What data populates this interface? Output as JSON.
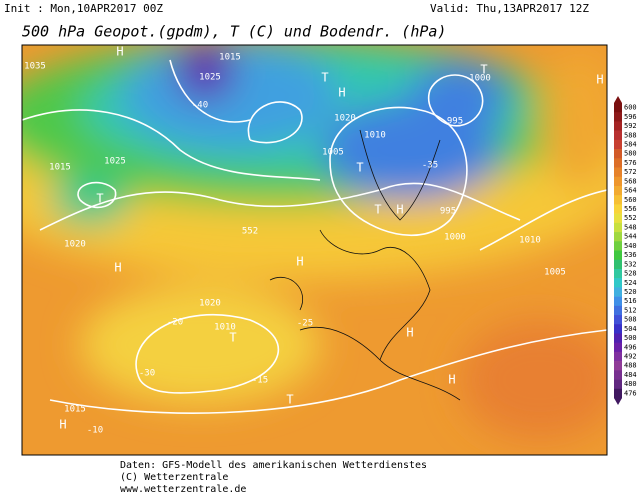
{
  "header": {
    "init": "Init : Mon,10APR2017 00Z",
    "valid": "Valid: Thu,13APR2017 12Z",
    "title": "500 hPa Geopot.(gpdm), T (C) und Bodendr. (hPa)"
  },
  "colorbar": {
    "labels": [
      600,
      596,
      592,
      588,
      584,
      580,
      576,
      572,
      568,
      564,
      560,
      556,
      552,
      548,
      544,
      540,
      536,
      532,
      528,
      524,
      520,
      516,
      512,
      508,
      504,
      500,
      496,
      492,
      488,
      484,
      480,
      476
    ],
    "colors": [
      "#7a1010",
      "#8e1a1a",
      "#a52424",
      "#b83030",
      "#c84030",
      "#d25a28",
      "#dc6e28",
      "#e6822a",
      "#ee962c",
      "#f2aa30",
      "#f6c034",
      "#f8d43a",
      "#e8e040",
      "#c8e040",
      "#a0d840",
      "#70d040",
      "#40c840",
      "#30c070",
      "#30c8a0",
      "#30c8c8",
      "#40b0e0",
      "#4090e8",
      "#4070e0",
      "#4050d8",
      "#3830c8",
      "#5020b0",
      "#6a20a8",
      "#8030a0",
      "#903c98",
      "#783090",
      "#602880",
      "#401860"
    ]
  },
  "map_labels": [
    "H",
    "1035",
    "1015",
    "1025",
    "T",
    "H",
    "1000",
    "T",
    "995",
    "1020",
    "1010",
    "1005",
    "T",
    "T",
    "H",
    "995",
    "1000",
    "1010",
    "1005",
    "H",
    "1015",
    "T",
    "1025",
    "1020",
    "H",
    "H",
    "1020",
    "T",
    "1010",
    "H",
    "H",
    "1015",
    "T",
    "H",
    "-20",
    "-30",
    "-25",
    "552",
    "-40",
    "-35",
    "-15",
    "-10"
  ],
  "footer": [
    "Daten: GFS-Modell des amerikanischen Wetterdienstes",
    "(C) Wetterzentrale",
    "www.wetterzentrale.de"
  ]
}
